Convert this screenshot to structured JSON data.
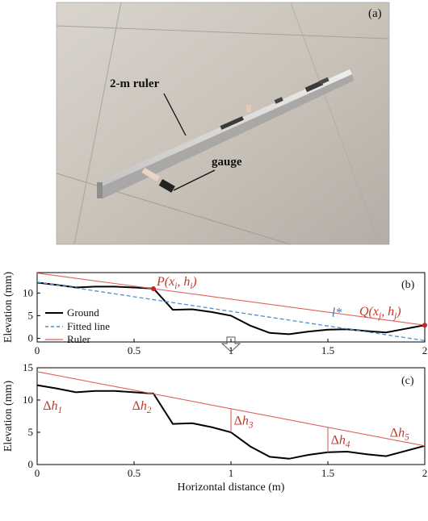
{
  "photo": {
    "panel_label": "(a)",
    "ruler_label": "2-m ruler",
    "gauge_label": "gauge"
  },
  "chart_data": [
    {
      "type": "line",
      "panel_label": "(b)",
      "ylabel": "Elevation (mm)",
      "xlim": [
        0,
        2
      ],
      "ylim": [
        -0.8,
        14.5
      ],
      "x_ticks": [
        0,
        0.5,
        1,
        1.5,
        2
      ],
      "x_tick_labels": [
        "0",
        "0.5",
        "1",
        "1.5",
        "2"
      ],
      "y_ticks": [
        0,
        5,
        10
      ],
      "y_tick_labels": [
        "0",
        "5",
        "10"
      ],
      "legend": {
        "placement": "middle-left",
        "entries": [
          "Ground",
          "Fitted line",
          "Ruler"
        ]
      },
      "series": [
        {
          "name": "Ground",
          "style": "solid",
          "color": "#000000",
          "x": [
            0,
            0.1,
            0.2,
            0.3,
            0.4,
            0.5,
            0.6,
            0.7,
            0.8,
            0.9,
            1.0,
            1.1,
            1.2,
            1.3,
            1.4,
            1.5,
            1.6,
            1.7,
            1.8,
            1.9,
            2.0
          ],
          "y": [
            12.3,
            11.8,
            11.2,
            11.4,
            11.4,
            11.2,
            11.0,
            6.3,
            6.4,
            5.8,
            5.0,
            2.8,
            1.2,
            0.9,
            1.5,
            1.9,
            2.0,
            1.6,
            1.3,
            2.1,
            2.9
          ]
        },
        {
          "name": "Fitted line",
          "style": "dashed",
          "color": "#4d8fd1",
          "x": [
            0,
            2
          ],
          "y": [
            12.4,
            -0.5
          ]
        },
        {
          "name": "Ruler",
          "style": "solid",
          "color": "#e06060",
          "x": [
            0,
            2
          ],
          "y": [
            14.4,
            2.9
          ]
        }
      ],
      "points": [
        {
          "x": 0.6,
          "y": 10.95,
          "label_main": "P(x",
          "label_sub1": "i",
          "label_mid": ", h",
          "label_sub2": "i",
          "label_end": ")"
        },
        {
          "x": 2.0,
          "y": 2.9,
          "label_main": "Q(x",
          "label_sub1": "j",
          "label_mid": ", h",
          "label_sub2": "j",
          "label_end": ")"
        }
      ],
      "fitted_label": "l*",
      "point_color": "#cc2222",
      "label_color": "#c0392b",
      "fitted_label_color": "#3a78c2"
    },
    {
      "type": "line",
      "panel_label": "(c)",
      "xlabel": "Horizontal distance (m)",
      "ylabel": "Elevation (mm)",
      "xlim": [
        0,
        2
      ],
      "ylim": [
        0,
        15
      ],
      "x_ticks": [
        0,
        0.5,
        1,
        1.5,
        2
      ],
      "x_tick_labels": [
        "0",
        "0.5",
        "1",
        "1.5",
        "2"
      ],
      "y_ticks": [
        0,
        5,
        10,
        15
      ],
      "y_tick_labels": [
        "0",
        "5",
        "10",
        "15"
      ],
      "series": [
        {
          "name": "Ground",
          "style": "solid",
          "color": "#000000",
          "x": [
            0,
            0.1,
            0.2,
            0.3,
            0.4,
            0.5,
            0.6,
            0.7,
            0.8,
            0.9,
            1.0,
            1.1,
            1.2,
            1.3,
            1.4,
            1.5,
            1.6,
            1.7,
            1.8,
            1.9,
            2.0
          ],
          "y": [
            12.3,
            11.8,
            11.2,
            11.4,
            11.4,
            11.2,
            11.0,
            6.3,
            6.4,
            5.8,
            5.0,
            2.8,
            1.2,
            0.9,
            1.5,
            1.9,
            2.0,
            1.6,
            1.3,
            2.1,
            2.9
          ]
        },
        {
          "name": "Ruler",
          "style": "solid",
          "color": "#e06060",
          "x": [
            0,
            2
          ],
          "y": [
            14.4,
            2.9
          ]
        }
      ],
      "deviations": [
        {
          "x": 1.0,
          "label": "h",
          "sub": "3"
        },
        {
          "x": 1.5,
          "label": "h",
          "sub": "4"
        }
      ],
      "delta_labels": [
        {
          "x": 0.03,
          "y": 8.5,
          "label": "h",
          "sub": "1"
        },
        {
          "x": 0.49,
          "y": 8.5,
          "label": "h",
          "sub": "2"
        },
        {
          "x": 1.015,
          "y": 6.2,
          "label": "h",
          "sub": "3"
        },
        {
          "x": 1.515,
          "y": 3.2,
          "label": "h",
          "sub": "4"
        },
        {
          "x": 1.82,
          "y": 4.3,
          "label": "h",
          "sub": "5"
        }
      ],
      "label_color": "#c0392b"
    }
  ]
}
